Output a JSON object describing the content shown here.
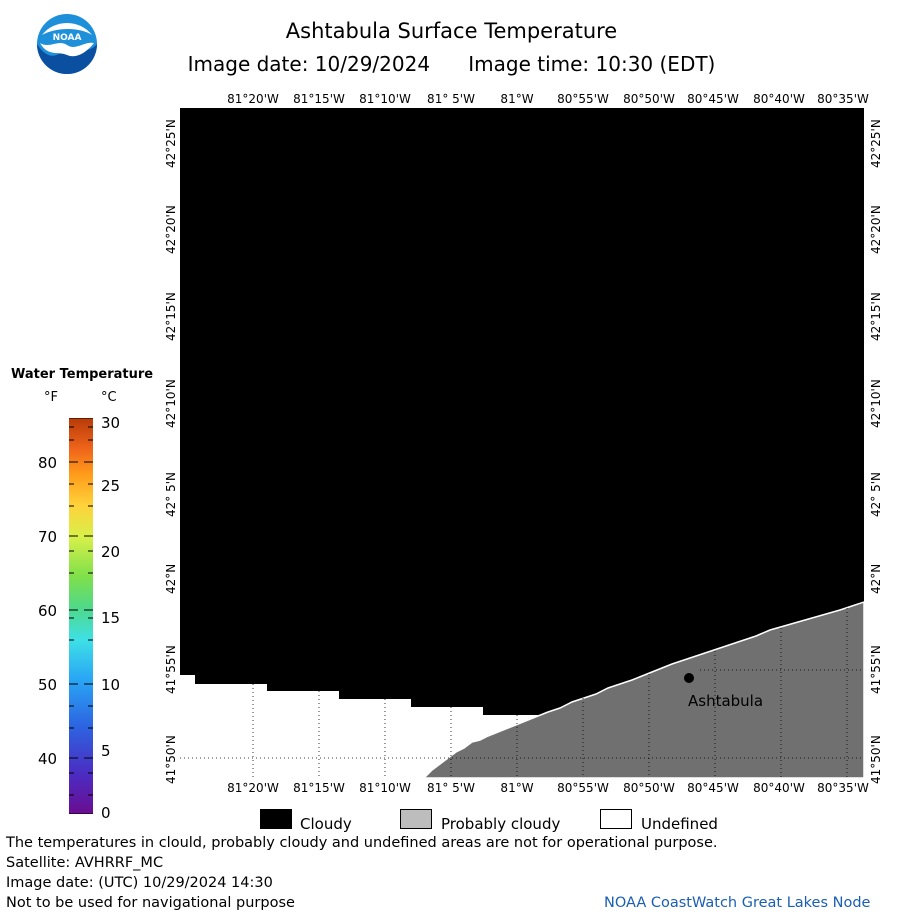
{
  "header": {
    "title": "Ashtabula Surface Temperature",
    "image_date": "Image date: 10/29/2024",
    "image_time": "Image time: 10:30 (EDT)"
  },
  "logo": {
    "text": "NOAA",
    "icon": "noaa-logo-icon"
  },
  "map": {
    "lon_labels": [
      "81°20'W",
      "81°15'W",
      "81°10'W",
      "81° 5'W",
      "81°W",
      "80°55'W",
      "80°50'W",
      "80°45'W",
      "80°40'W",
      "80°35'W"
    ],
    "lat_labels": [
      "42°25'N",
      "42°20'N",
      "42°15'N",
      "42°10'N",
      "42° 5'N",
      "42°N",
      "41°55'N",
      "41°50'N"
    ],
    "city": {
      "name": "Ashtabula"
    },
    "colors": {
      "cloudy": "#000000",
      "land": "#707070",
      "undefined": "#ffffff"
    }
  },
  "legend": {
    "title": "Water Temperature",
    "unit_f": "°F",
    "unit_c": "°C",
    "f_ticks": [
      "80",
      "70",
      "60",
      "50",
      "40"
    ],
    "c_ticks": [
      "30",
      "25",
      "20",
      "15",
      "10",
      "5",
      "0"
    ]
  },
  "key": {
    "cloudy": "Cloudy",
    "probably_cloudy": "Probably cloudy",
    "undefined": "Undefined"
  },
  "footer": {
    "note": "The temperatures in clould, probably cloudy and undefined areas are not for operational purpose.",
    "satellite": "Satellite: AVHRRF_MC",
    "utc_date": "Image date: (UTC) 10/29/2024  14:30",
    "nav_warning": "Not to be used for navigational purpose",
    "credit": "NOAA CoastWatch Great Lakes Node"
  }
}
